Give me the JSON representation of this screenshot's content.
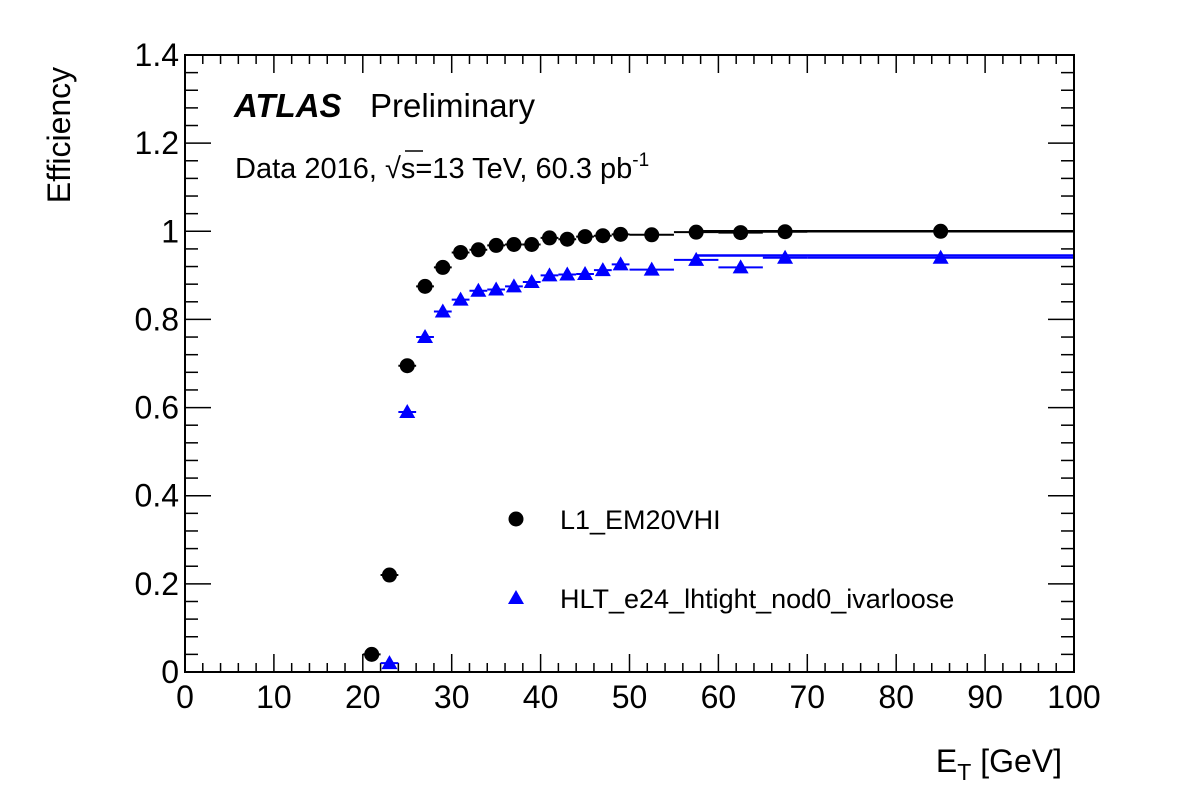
{
  "labels": {
    "atlas": "ATLAS",
    "preliminary": "Preliminary",
    "info_prefix": "Data 2016, ",
    "sqrt_symbol": "√",
    "info_energy": "s=13 TeV, 60.3 pb",
    "info_lumi_exp": "-1"
  },
  "chart_data": {
    "type": "scatter",
    "title": "",
    "xlabel": "E",
    "xlabel_sub": "T",
    "xlabel_unit": " [GeV]",
    "ylabel": "Efficiency",
    "xlim": [
      0,
      100
    ],
    "ylim": [
      0,
      1.4
    ],
    "xticks": [
      0,
      10,
      20,
      30,
      40,
      50,
      60,
      70,
      80,
      90,
      100
    ],
    "yticks": [
      0,
      0.2,
      0.4,
      0.6,
      0.8,
      1,
      1.2,
      1.4
    ],
    "ytick_labels": [
      "0",
      "0.2",
      "0.4",
      "0.6",
      "0.8",
      "1",
      "1.2",
      "1.4"
    ],
    "grid": false,
    "legend_position": "bottom-center",
    "series": [
      {
        "name": "L1_EM20VHI",
        "marker": "circle",
        "color": "#000000",
        "x": [
          21,
          23,
          25,
          27,
          29,
          31,
          33,
          35,
          37,
          39,
          41,
          43,
          45,
          47,
          49,
          52.5,
          57.5,
          62.5,
          67.5,
          85
        ],
        "y": [
          0.04,
          0.22,
          0.695,
          0.875,
          0.918,
          0.952,
          0.958,
          0.968,
          0.97,
          0.97,
          0.985,
          0.982,
          0.988,
          0.99,
          0.993,
          0.992,
          0.998,
          0.997,
          0.999,
          1.0
        ],
        "x_err": [
          1,
          1,
          1,
          1,
          1,
          1,
          1,
          1,
          1,
          1,
          1,
          1,
          1,
          1,
          1,
          2.5,
          2.5,
          2.5,
          2.5,
          15
        ],
        "y_err": [
          0.005,
          0.008,
          0.008,
          0.006,
          0.005,
          0.004,
          0.004,
          0.004,
          0.003,
          0.003,
          0.003,
          0.003,
          0.003,
          0.003,
          0.003,
          0.002,
          0.002,
          0.002,
          0.002,
          0.001
        ],
        "fit_level": 1.0
      },
      {
        "name": "HLT_e24_lhtight_nod0_ivarloose",
        "marker": "triangle",
        "color": "#0000ff",
        "x": [
          23,
          25,
          27,
          29,
          31,
          33,
          35,
          37,
          39,
          41,
          43,
          45,
          47,
          49,
          52.5,
          57.5,
          62.5,
          67.5,
          85
        ],
        "y": [
          0.02,
          0.59,
          0.76,
          0.818,
          0.845,
          0.865,
          0.868,
          0.875,
          0.885,
          0.9,
          0.902,
          0.903,
          0.912,
          0.925,
          0.913,
          0.935,
          0.918,
          0.94,
          0.94
        ],
        "x_err": [
          1,
          1,
          1,
          1,
          1,
          1,
          1,
          1,
          1,
          1,
          1,
          1,
          1,
          1,
          2.5,
          2.5,
          2.5,
          2.5,
          15
        ],
        "y_err": [
          0.004,
          0.012,
          0.009,
          0.008,
          0.007,
          0.006,
          0.006,
          0.006,
          0.005,
          0.005,
          0.005,
          0.005,
          0.005,
          0.005,
          0.004,
          0.004,
          0.004,
          0.004,
          0.003
        ],
        "fit_level": 0.945
      }
    ]
  }
}
